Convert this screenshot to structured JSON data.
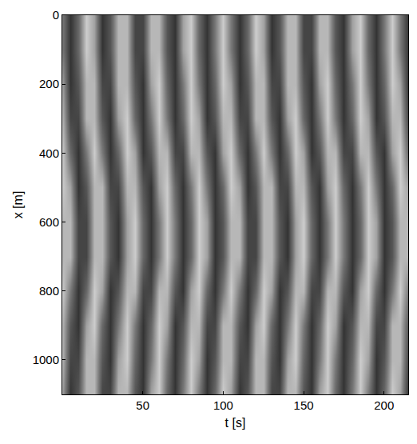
{
  "chart_data": {
    "type": "heatmap",
    "x_label": "t [s]",
    "y_label": "x [m]",
    "x": [
      0,
      5,
      10,
      15,
      20,
      25,
      30,
      35,
      40,
      45,
      50,
      55,
      60,
      65,
      70,
      75,
      80,
      85,
      90,
      95,
      100,
      105,
      110,
      115,
      120,
      125,
      130,
      135,
      140,
      145,
      150,
      155,
      160,
      165,
      170,
      175,
      180,
      185,
      190,
      195,
      200,
      205,
      210,
      215
    ],
    "y": [
      0,
      100,
      200,
      300,
      400,
      500,
      600,
      700,
      800,
      900,
      1000,
      1100
    ],
    "z": [
      [
        0.5,
        0.1,
        0.4,
        0.9,
        0.7,
        0.1,
        0.3,
        0.8,
        0.8,
        0.2,
        0.2,
        0.8,
        0.8,
        0.3,
        0.1,
        0.7,
        0.9,
        0.4,
        0.1,
        0.5,
        0.9,
        0.5,
        0.1,
        0.4,
        0.9,
        0.7,
        0.1,
        0.3,
        0.8,
        0.8,
        0.2,
        0.2,
        0.8,
        0.8,
        0.3,
        0.1,
        0.7,
        0.9,
        0.4,
        0.1,
        0.5,
        0.9,
        0.5,
        0.1
      ],
      [
        0.5,
        0.1,
        0.4,
        0.9,
        0.7,
        0.1,
        0.3,
        0.8,
        0.8,
        0.2,
        0.2,
        0.8,
        0.8,
        0.3,
        0.1,
        0.7,
        0.9,
        0.4,
        0.1,
        0.5,
        0.9,
        0.5,
        0.1,
        0.4,
        0.9,
        0.7,
        0.1,
        0.3,
        0.8,
        0.8,
        0.2,
        0.2,
        0.8,
        0.8,
        0.3,
        0.1,
        0.7,
        0.9,
        0.4,
        0.1,
        0.5,
        0.9,
        0.5,
        0.1
      ],
      [
        0.7,
        0.1,
        0.3,
        0.8,
        0.8,
        0.2,
        0.2,
        0.8,
        0.8,
        0.3,
        0.1,
        0.7,
        0.9,
        0.4,
        0.1,
        0.5,
        0.9,
        0.5,
        0.1,
        0.4,
        0.9,
        0.7,
        0.1,
        0.3,
        0.8,
        0.8,
        0.2,
        0.2,
        0.8,
        0.8,
        0.3,
        0.1,
        0.7,
        0.9,
        0.4,
        0.1,
        0.5,
        0.9,
        0.5,
        0.1,
        0.4,
        0.9,
        0.7,
        0.1
      ],
      [
        0.8,
        0.2,
        0.2,
        0.8,
        0.8,
        0.3,
        0.1,
        0.7,
        0.9,
        0.4,
        0.1,
        0.5,
        0.9,
        0.5,
        0.1,
        0.4,
        0.9,
        0.7,
        0.1,
        0.3,
        0.8,
        0.8,
        0.2,
        0.2,
        0.8,
        0.8,
        0.3,
        0.1,
        0.7,
        0.9,
        0.4,
        0.1,
        0.5,
        0.9,
        0.5,
        0.1,
        0.4,
        0.9,
        0.7,
        0.1,
        0.3,
        0.8,
        0.8,
        0.2
      ],
      [
        0.9,
        0.4,
        0.1,
        0.5,
        0.9,
        0.5,
        0.1,
        0.4,
        0.9,
        0.7,
        0.1,
        0.3,
        0.8,
        0.8,
        0.2,
        0.2,
        0.8,
        0.8,
        0.3,
        0.1,
        0.7,
        0.9,
        0.4,
        0.1,
        0.5,
        0.9,
        0.5,
        0.1,
        0.4,
        0.9,
        0.7,
        0.1,
        0.3,
        0.8,
        0.8,
        0.2,
        0.2,
        0.8,
        0.8,
        0.3,
        0.1,
        0.7,
        0.9,
        0.4
      ],
      [
        0.9,
        0.7,
        0.1,
        0.3,
        0.8,
        0.8,
        0.2,
        0.2,
        0.8,
        0.8,
        0.3,
        0.1,
        0.7,
        0.9,
        0.4,
        0.1,
        0.5,
        0.9,
        0.5,
        0.1,
        0.4,
        0.9,
        0.7,
        0.1,
        0.3,
        0.8,
        0.8,
        0.2,
        0.2,
        0.8,
        0.8,
        0.3,
        0.1,
        0.7,
        0.9,
        0.4,
        0.1,
        0.5,
        0.9,
        0.5,
        0.1,
        0.4,
        0.9,
        0.7
      ],
      [
        0.8,
        0.8,
        0.2,
        0.2,
        0.8,
        0.8,
        0.3,
        0.1,
        0.7,
        0.9,
        0.4,
        0.1,
        0.5,
        0.9,
        0.5,
        0.1,
        0.4,
        0.9,
        0.7,
        0.1,
        0.3,
        0.8,
        0.8,
        0.2,
        0.2,
        0.8,
        0.8,
        0.3,
        0.1,
        0.7,
        0.9,
        0.4,
        0.1,
        0.5,
        0.9,
        0.5,
        0.1,
        0.4,
        0.9,
        0.7,
        0.1,
        0.3,
        0.8,
        0.8
      ],
      [
        0.8,
        0.8,
        0.2,
        0.2,
        0.8,
        0.8,
        0.3,
        0.1,
        0.7,
        0.9,
        0.4,
        0.1,
        0.5,
        0.9,
        0.5,
        0.1,
        0.4,
        0.9,
        0.7,
        0.1,
        0.3,
        0.8,
        0.8,
        0.2,
        0.2,
        0.8,
        0.8,
        0.3,
        0.1,
        0.7,
        0.9,
        0.4,
        0.1,
        0.5,
        0.9,
        0.5,
        0.1,
        0.4,
        0.9,
        0.7,
        0.1,
        0.3,
        0.8,
        0.8
      ],
      [
        0.9,
        0.5,
        0.1,
        0.4,
        0.9,
        0.7,
        0.1,
        0.3,
        0.8,
        0.8,
        0.2,
        0.2,
        0.8,
        0.8,
        0.3,
        0.1,
        0.7,
        0.9,
        0.4,
        0.1,
        0.5,
        0.9,
        0.5,
        0.1,
        0.4,
        0.9,
        0.7,
        0.1,
        0.3,
        0.8,
        0.8,
        0.2,
        0.2,
        0.8,
        0.8,
        0.3,
        0.1,
        0.7,
        0.9,
        0.4,
        0.1,
        0.5,
        0.9,
        0.5
      ],
      [
        0.8,
        0.3,
        0.1,
        0.7,
        0.9,
        0.4,
        0.1,
        0.5,
        0.9,
        0.5,
        0.1,
        0.4,
        0.9,
        0.7,
        0.1,
        0.3,
        0.8,
        0.8,
        0.2,
        0.2,
        0.8,
        0.8,
        0.3,
        0.1,
        0.7,
        0.9,
        0.4,
        0.1,
        0.5,
        0.9,
        0.5,
        0.1,
        0.4,
        0.9,
        0.7,
        0.1,
        0.3,
        0.8,
        0.8,
        0.2,
        0.2,
        0.8,
        0.8,
        0.3
      ],
      [
        0.8,
        0.2,
        0.2,
        0.8,
        0.8,
        0.3,
        0.1,
        0.7,
        0.9,
        0.4,
        0.1,
        0.5,
        0.9,
        0.5,
        0.1,
        0.4,
        0.9,
        0.7,
        0.1,
        0.3,
        0.8,
        0.8,
        0.2,
        0.2,
        0.8,
        0.8,
        0.3,
        0.1,
        0.7,
        0.9,
        0.4,
        0.1,
        0.5,
        0.9,
        0.5,
        0.1,
        0.4,
        0.9,
        0.7,
        0.1,
        0.3,
        0.8,
        0.8,
        0.2
      ],
      [
        0.7,
        0.1,
        0.3,
        0.8,
        0.8,
        0.2,
        0.2,
        0.8,
        0.8,
        0.3,
        0.1,
        0.7,
        0.9,
        0.4,
        0.1,
        0.5,
        0.9,
        0.5,
        0.1,
        0.4,
        0.9,
        0.7,
        0.1,
        0.3,
        0.8,
        0.8,
        0.2,
        0.2,
        0.8,
        0.8,
        0.3,
        0.1,
        0.7,
        0.9,
        0.4,
        0.1,
        0.5,
        0.9,
        0.5,
        0.1,
        0.4,
        0.9,
        0.7,
        0.1
      ]
    ],
    "color_range": [
      0,
      1
    ],
    "xlim": [
      0,
      215
    ],
    "ylim": [
      1100,
      0
    ],
    "xticks": [
      50,
      100,
      150,
      200
    ],
    "yticks": [
      0,
      200,
      400,
      600,
      800,
      1000
    ],
    "grid": false
  }
}
